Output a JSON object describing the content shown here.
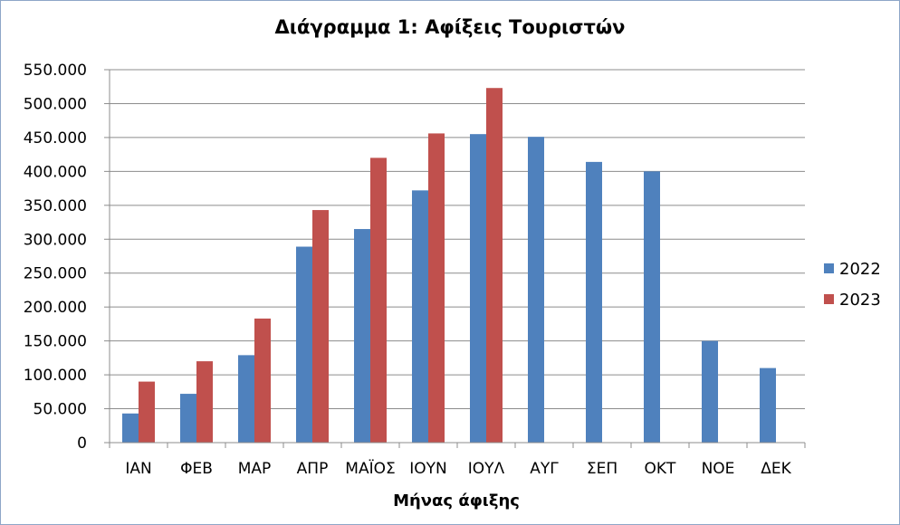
{
  "chart_data": {
    "type": "bar",
    "title": "Διάγραμμα 1: Αφίξεις Τουριστών",
    "xlabel": "Μήνας άφιξης",
    "ylabel": "",
    "categories": [
      "ΙΑΝ",
      "ΦΕΒ",
      "ΜΑΡ",
      "ΑΠΡ",
      "ΜΑΪΟΣ",
      "ΙΟΥΝ",
      "ΙΟΥΛ",
      "ΑΥΓ",
      "ΣΕΠ",
      "ΟΚΤ",
      "ΝΟΕ",
      "ΔΕΚ"
    ],
    "series": [
      {
        "name": "2022",
        "color": "#4f81bd",
        "values": [
          43000,
          72000,
          129000,
          289000,
          315000,
          372000,
          455000,
          451000,
          414000,
          400000,
          150000,
          110000
        ]
      },
      {
        "name": "2023",
        "color": "#c0504d",
        "values": [
          90000,
          120000,
          183000,
          343000,
          420000,
          456000,
          523000,
          null,
          null,
          null,
          null,
          null
        ]
      }
    ],
    "ylim": [
      0,
      550000
    ],
    "yticks": [
      0,
      50000,
      100000,
      150000,
      200000,
      250000,
      300000,
      350000,
      400000,
      450000,
      500000,
      550000
    ],
    "ytick_labels": [
      "0",
      "50.000",
      "100.000",
      "150.000",
      "200.000",
      "250.000",
      "300.000",
      "350.000",
      "400.000",
      "450.000",
      "500.000",
      "550.000"
    ],
    "grid": true,
    "legend_position": "right"
  }
}
